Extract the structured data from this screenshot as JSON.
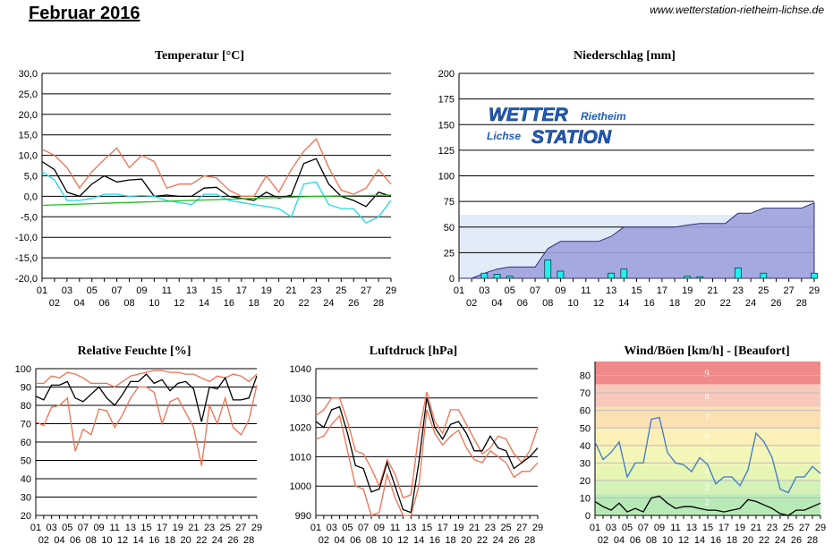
{
  "page": {
    "title": "Februar 2016",
    "url": "www.wetterstation-rietheim-lichse.de"
  },
  "logo": {
    "line1": "WETTER",
    "line1b": "Rietheim",
    "line2": "Lichse",
    "line2b": "STATION"
  },
  "colors": {
    "max": "#f07050",
    "mean": "#000000",
    "min": "#20d8e8",
    "long": "#20c020",
    "precipFill": "#9ea2dc",
    "precipBar": "#20f0f0",
    "wind": "#3a78c8",
    "gust": "#000000"
  },
  "chart_data": [
    {
      "type": "line",
      "title": "Temperatur [°C]",
      "ylim": [
        -20,
        30
      ],
      "yticks": [
        "30,0",
        "25,0",
        "20,0",
        "15,0",
        "10,0",
        "5,0",
        "0,0",
        "-5,0",
        "-10,0",
        "-15,0",
        "-20,0"
      ],
      "x": [
        1,
        2,
        3,
        4,
        5,
        6,
        7,
        8,
        9,
        10,
        11,
        12,
        13,
        14,
        15,
        16,
        17,
        18,
        19,
        20,
        21,
        22,
        23,
        24,
        25,
        26,
        27,
        28,
        29
      ],
      "xticks_top": [
        "01",
        "03",
        "05",
        "07",
        "09",
        "11",
        "13",
        "15",
        "17",
        "19",
        "21",
        "23",
        "25",
        "27",
        "29"
      ],
      "xticks_bottom": [
        "02",
        "04",
        "06",
        "08",
        "10",
        "12",
        "14",
        "16",
        "18",
        "20",
        "22",
        "24",
        "26",
        "28"
      ],
      "series": [
        {
          "name": "",
          "color": "#f07050",
          "values": [
            11.5,
            10,
            7,
            2,
            6,
            9,
            11.8,
            7,
            10,
            8.5,
            2,
            3,
            3,
            5,
            4.5,
            1.5,
            0,
            0,
            5,
            1,
            6.5,
            11,
            14,
            7,
            1.5,
            0.5,
            2,
            6.5,
            3
          ]
        },
        {
          "name": "",
          "color": "#000000",
          "values": [
            8.5,
            6.5,
            1,
            0,
            3,
            5,
            3.5,
            4,
            4.2,
            0,
            0.3,
            0,
            0,
            2,
            2.2,
            0,
            -0.5,
            -1,
            1,
            -0.5,
            0.3,
            8,
            9.2,
            3,
            0,
            -1,
            -2.5,
            1,
            0
          ]
        },
        {
          "name": "",
          "color": "#20d8e8",
          "values": [
            6,
            4,
            -1,
            -1,
            -0.5,
            0.5,
            0.5,
            0,
            0.2,
            0,
            -1,
            -1.5,
            -2,
            0.5,
            0.5,
            -1,
            -1.5,
            -2,
            -2.5,
            -3,
            -5,
            3,
            3.5,
            -2,
            -3,
            -3,
            -6.5,
            -5,
            -1
          ]
        },
        {
          "name": "",
          "color": "#20c020",
          "values": [
            -2.2,
            -2.1,
            -2.0,
            -1.9,
            -1.8,
            -1.7,
            -1.6,
            -1.5,
            -1.4,
            -1.3,
            -1.2,
            -1.1,
            -1.0,
            -0.9,
            -0.8,
            -0.7,
            -0.6,
            -0.5,
            -0.4,
            -0.3,
            -0.2,
            -0.1,
            0,
            0.05,
            0.1,
            0.15,
            0.2,
            0.25,
            0.3
          ]
        }
      ]
    },
    {
      "type": "bar",
      "title": "Niederschlag [mm]",
      "ylim": [
        0,
        200
      ],
      "yticks": [
        "200",
        "175",
        "150",
        "125",
        "100",
        "75",
        "50",
        "25",
        "0"
      ],
      "x": [
        1,
        2,
        3,
        4,
        5,
        6,
        7,
        8,
        9,
        10,
        11,
        12,
        13,
        14,
        15,
        16,
        17,
        18,
        19,
        20,
        21,
        22,
        23,
        24,
        25,
        26,
        27,
        28,
        29
      ],
      "daily": [
        0,
        0,
        5,
        4,
        2,
        0,
        0,
        18,
        7,
        0,
        0,
        0,
        5,
        9,
        0,
        0,
        0,
        0,
        2,
        1.5,
        0,
        0,
        10,
        0,
        5,
        0,
        0,
        0,
        5
      ],
      "cumulative": [
        0,
        0,
        5,
        9,
        11,
        11,
        11,
        29,
        36,
        36,
        36,
        36,
        41,
        50,
        50,
        50,
        50,
        50,
        52,
        53.5,
        53.5,
        53.5,
        63.5,
        63.5,
        68.5,
        68.5,
        68.5,
        68.5,
        73.5
      ],
      "long_term": 62,
      "xticks_top": [
        "01",
        "03",
        "05",
        "07",
        "09",
        "11",
        "13",
        "15",
        "17",
        "19",
        "21",
        "23",
        "25",
        "27",
        "29"
      ],
      "xticks_bottom": [
        "02",
        "04",
        "06",
        "08",
        "10",
        "12",
        "14",
        "16",
        "18",
        "20",
        "22",
        "24",
        "26",
        "28"
      ]
    },
    {
      "type": "line",
      "title": "Relative Feuchte [%]",
      "ylim": [
        20,
        100
      ],
      "yticks": [
        "100",
        "90",
        "80",
        "70",
        "60",
        "50",
        "40",
        "30",
        "20"
      ],
      "x": [
        1,
        2,
        3,
        4,
        5,
        6,
        7,
        8,
        9,
        10,
        11,
        12,
        13,
        14,
        15,
        16,
        17,
        18,
        19,
        20,
        21,
        22,
        23,
        24,
        25,
        26,
        27,
        28,
        29
      ],
      "xticks_top": [
        "01",
        "03",
        "05",
        "07",
        "09",
        "11",
        "13",
        "15",
        "17",
        "19",
        "21",
        "23",
        "25",
        "27",
        "29"
      ],
      "xticks_bottom": [
        "02",
        "04",
        "06",
        "08",
        "10",
        "12",
        "14",
        "16",
        "18",
        "20",
        "22",
        "24",
        "26",
        "28"
      ],
      "series": [
        {
          "name": "",
          "color": "#f07050",
          "values": [
            92,
            92,
            96,
            95,
            98,
            97,
            95,
            92,
            92,
            92,
            90,
            93,
            96,
            97,
            98,
            99,
            99,
            98,
            98,
            97,
            97,
            95,
            93,
            96,
            95,
            97,
            96,
            93,
            97
          ]
        },
        {
          "name": "",
          "color": "#000000",
          "values": [
            85,
            83,
            91,
            91,
            93,
            84,
            82,
            86,
            90,
            84,
            80,
            86,
            93,
            93,
            97,
            92,
            94,
            88,
            92,
            93,
            89,
            71,
            90,
            89,
            95,
            83,
            83,
            84,
            96
          ]
        },
        {
          "name": "",
          "color": "#f07050",
          "values": [
            71,
            69,
            79,
            80,
            84,
            55,
            67,
            64,
            78,
            77,
            68,
            75,
            84,
            90,
            90,
            87,
            70,
            82,
            84,
            76,
            68,
            47,
            80,
            70,
            84,
            68,
            64,
            72,
            91
          ]
        }
      ]
    },
    {
      "type": "line",
      "title": "Luftdruck [hPa]",
      "ylim": [
        990,
        1040
      ],
      "yticks": [
        "1040",
        "1030",
        "1020",
        "1010",
        "1000",
        "990"
      ],
      "x": [
        1,
        2,
        3,
        4,
        5,
        6,
        7,
        8,
        9,
        10,
        11,
        12,
        13,
        14,
        15,
        16,
        17,
        18,
        19,
        20,
        21,
        22,
        23,
        24,
        25,
        26,
        27,
        28,
        29
      ],
      "xticks_top": [
        "01",
        "03",
        "05",
        "07",
        "09",
        "11",
        "13",
        "15",
        "17",
        "19",
        "21",
        "23",
        "25",
        "27",
        "29"
      ],
      "xticks_bottom": [
        "02",
        "04",
        "06",
        "08",
        "10",
        "12",
        "14",
        "16",
        "18",
        "20",
        "22",
        "24",
        "26",
        "28"
      ],
      "series": [
        {
          "name": "",
          "color": "#f07050",
          "values": [
            1024,
            1026,
            1030,
            1030,
            1022,
            1012,
            1011,
            1006,
            1000,
            1009,
            1004,
            996,
            997,
            1018,
            1032,
            1022,
            1018,
            1026,
            1026,
            1021,
            1016,
            1011,
            1013,
            1017,
            1016,
            1011,
            1008,
            1012,
            1020
          ]
        },
        {
          "name": "",
          "color": "#000000",
          "values": [
            1022,
            1020,
            1026,
            1027,
            1018,
            1007,
            1006,
            998,
            999,
            1008,
            1000,
            992,
            991,
            1008,
            1030,
            1020,
            1016,
            1021,
            1022,
            1018,
            1012,
            1012,
            1017,
            1013,
            1012,
            1006,
            1008,
            1010,
            1013
          ]
        },
        {
          "name": "",
          "color": "#f07050",
          "values": [
            1016,
            1017,
            1021,
            1024,
            1012,
            1000,
            999,
            990,
            991,
            1004,
            996,
            990,
            990,
            1000,
            1026,
            1018,
            1014,
            1017,
            1019,
            1013,
            1009,
            1008,
            1012,
            1010,
            1008,
            1003,
            1005,
            1005,
            1008
          ]
        }
      ]
    },
    {
      "type": "line",
      "title": "Wind/Böen [km/h] - [Beaufort]",
      "ylim": [
        0,
        88
      ],
      "yticks": [
        "80",
        "70",
        "60",
        "50",
        "40",
        "30",
        "20",
        "10",
        "0"
      ],
      "beaufort": [
        "2",
        "3",
        "4",
        "5",
        "6",
        "7",
        "8",
        "9"
      ],
      "x": [
        1,
        2,
        3,
        4,
        5,
        6,
        7,
        8,
        9,
        10,
        11,
        12,
        13,
        14,
        15,
        16,
        17,
        18,
        19,
        20,
        21,
        22,
        23,
        24,
        25,
        26,
        27,
        28,
        29
      ],
      "xticks_top": [
        "01",
        "03",
        "05",
        "07",
        "09",
        "11",
        "13",
        "15",
        "17",
        "19",
        "21",
        "23",
        "25",
        "27",
        "29"
      ],
      "xticks_bottom": [
        "02",
        "04",
        "06",
        "08",
        "10",
        "12",
        "14",
        "16",
        "18",
        "20",
        "22",
        "24",
        "26",
        "28"
      ],
      "series": [
        {
          "name": "",
          "color": "#3a78c8",
          "values": [
            42,
            32,
            36,
            42,
            22,
            30,
            30,
            55,
            56,
            36,
            30,
            29,
            25,
            33,
            29,
            18,
            22,
            22,
            17,
            26,
            47,
            42,
            33,
            15,
            13,
            22,
            22,
            28,
            24
          ]
        },
        {
          "name": "",
          "color": "#000000",
          "values": [
            8,
            5,
            3,
            7,
            2,
            4,
            2,
            10,
            11,
            7,
            4,
            5,
            5,
            4,
            3,
            3,
            2,
            3,
            4,
            9,
            8,
            6,
            4,
            1,
            0,
            3,
            3,
            5,
            7
          ]
        }
      ]
    }
  ]
}
